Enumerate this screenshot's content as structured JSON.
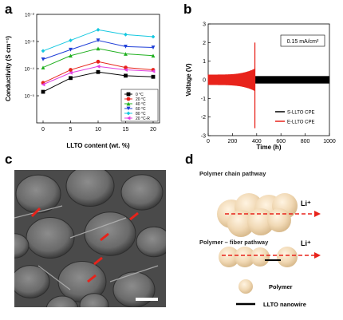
{
  "panel_labels": {
    "a": "a",
    "b": "b",
    "c": "c",
    "d": "d"
  },
  "chart_data": [
    {
      "type": "line",
      "panel": "a",
      "xlabel": "LLTO content (wt. %)",
      "ylabel": "Conductivity (S cm⁻¹)",
      "log_scale_y": true,
      "xlim": [
        0,
        20
      ],
      "ylim_exp": [
        -6,
        -2
      ],
      "x": [
        0,
        5,
        10,
        15,
        20
      ],
      "xticks": [
        "0",
        "5",
        "10",
        "15",
        "20"
      ],
      "yticks": [
        {
          "exp": -2,
          "label": "10⁻²"
        },
        {
          "exp": -3,
          "label": "10⁻³"
        },
        {
          "exp": -4,
          "label": "10⁻⁴"
        },
        {
          "exp": -5,
          "label": "10⁻⁵"
        }
      ],
      "series": [
        {
          "name": "0 °C",
          "color": "#000000",
          "marker": "square",
          "values": [
            1.4e-05,
            4.5e-05,
            7.5e-05,
            5.5e-05,
            5e-05
          ]
        },
        {
          "name": "20 °C",
          "color": "#e8231b",
          "marker": "circle",
          "values": [
            3e-05,
            9e-05,
            0.00018,
            0.00011,
            9e-05
          ]
        },
        {
          "name": "40 °C",
          "color": "#20b020",
          "marker": "triangle",
          "values": [
            0.00011,
            0.0003,
            0.00055,
            0.00035,
            0.0003
          ]
        },
        {
          "name": "60 °C",
          "color": "#1f3fd8",
          "marker": "triangle-down",
          "values": [
            0.00022,
            0.0005,
            0.0011,
            0.00065,
            0.0006
          ]
        },
        {
          "name": "80 °C",
          "color": "#14c8e0",
          "marker": "diamond",
          "values": [
            0.00045,
            0.0011,
            0.0027,
            0.0018,
            0.0015
          ]
        },
        {
          "name": "20 °C-R",
          "color": "#e040e0",
          "marker": "triangle-left",
          "values": [
            2.6e-05,
            7e-05,
            0.00012,
            9e-05,
            8e-05
          ]
        }
      ],
      "legend_placement": "bottom-right"
    },
    {
      "type": "line",
      "panel": "b",
      "xlabel": "Time (h)",
      "ylabel": "Voltage (V)",
      "xlim": [
        0,
        1000
      ],
      "ylim": [
        -3,
        3
      ],
      "xticks": [
        "0",
        "200",
        "400",
        "600",
        "800",
        "1000"
      ],
      "yticks": [
        "3",
        "2",
        "1",
        "0",
        "-1",
        "-2",
        "-3"
      ],
      "annotation": "0.15 mA/cm²",
      "series": [
        {
          "name": "S-LLTO CPE",
          "color": "#000000",
          "amplitude_v": 0.2,
          "x": [
            0,
            1000
          ]
        },
        {
          "name": "E-LLTO CPE",
          "color": "#e8231b",
          "amplitude_v": 0.4,
          "x": [
            0,
            385
          ],
          "spike_at": 385,
          "spike_v": [
            2.0,
            -2.6
          ]
        }
      ],
      "legend_placement": "bottom-right"
    }
  ],
  "diagram": {
    "pathway1_label": "Polymer chain pathway",
    "pathway2_label": "Polymer – fiber pathway",
    "ion_label": "Li⁺",
    "legend_polymer": "Polymer",
    "legend_nanowire": "LLTO nanowire",
    "polymer_color": "#f1d9b5",
    "arrow_color": "#e8231b"
  }
}
